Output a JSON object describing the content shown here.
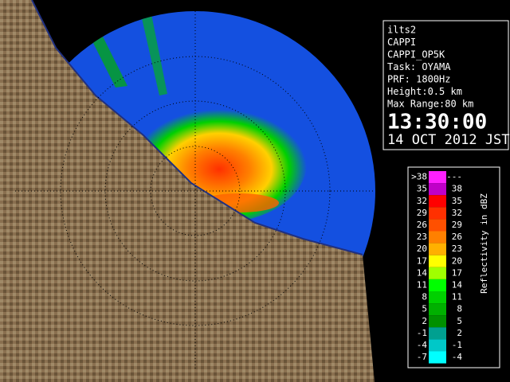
{
  "info": {
    "lines": [
      "ilts2",
      "CAPPI",
      "CAPPI_OP5K",
      "Task: OYAMA",
      "PRF: 1800Hz",
      "Height:0.5 km",
      "Max Range:80 km"
    ],
    "time": "13:30:00",
    "date": "14 OCT 2012 JST"
  },
  "legend": {
    "label": "Reflectivity in dBZ",
    "rows": [
      {
        "low": ">38",
        "high": "---",
        "color": "#ff20ff"
      },
      {
        "low": "35",
        "high": "38",
        "color": "#c000c8"
      },
      {
        "low": "32",
        "high": "35",
        "color": "#ff0000"
      },
      {
        "low": "29",
        "high": "32",
        "color": "#ff3000"
      },
      {
        "low": "26",
        "high": "29",
        "color": "#ff5000"
      },
      {
        "low": "23",
        "high": "26",
        "color": "#ff8000"
      },
      {
        "low": "20",
        "high": "23",
        "color": "#ffb000"
      },
      {
        "low": "17",
        "high": "20",
        "color": "#ffff00"
      },
      {
        "low": "14",
        "high": "17",
        "color": "#a0ff00"
      },
      {
        "low": "11",
        "high": "14",
        "color": "#00ff00"
      },
      {
        "low": "8",
        "high": "11",
        "color": "#00d000"
      },
      {
        "low": "5",
        "high": "8",
        "color": "#00b000"
      },
      {
        "low": "2",
        "high": "5",
        "color": "#009000"
      },
      {
        "low": "-1",
        "high": "2",
        "color": "#00a090"
      },
      {
        "low": "-4",
        "high": "-1",
        "color": "#00c8c8"
      },
      {
        "low": "-7",
        "high": "-4",
        "color": "#00ffff"
      }
    ]
  }
}
